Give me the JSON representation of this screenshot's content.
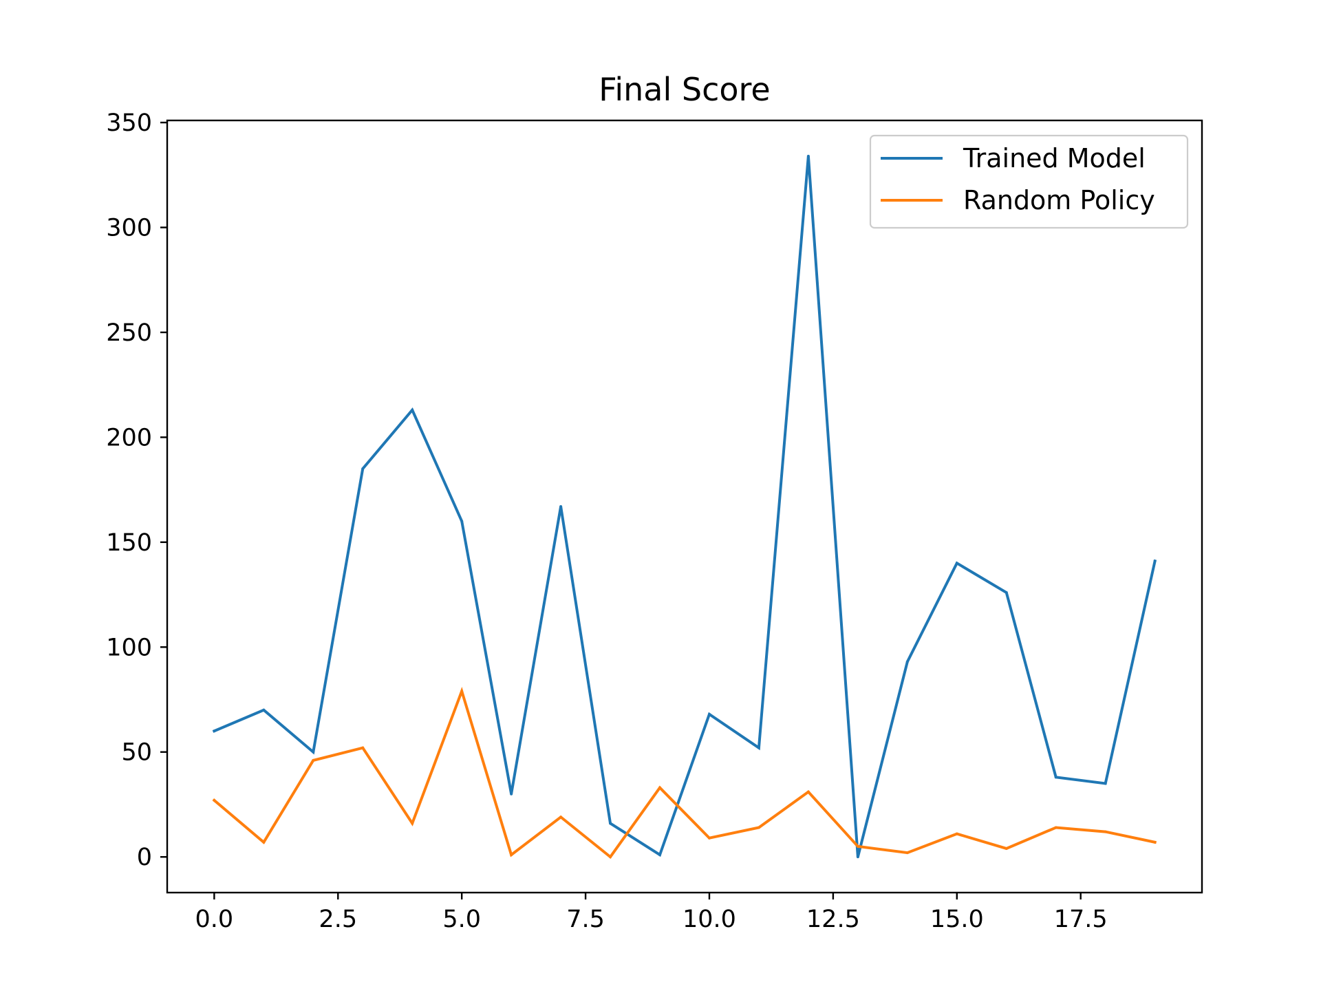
{
  "chart_data": {
    "type": "line",
    "title": "Final Score",
    "xlabel": "",
    "ylabel": "",
    "xlim": [
      -0.95,
      19.95
    ],
    "ylim": [
      -17,
      351
    ],
    "xticks": [
      0.0,
      2.5,
      5.0,
      7.5,
      10.0,
      12.5,
      15.0,
      17.5
    ],
    "xtick_labels": [
      "0.0",
      "2.5",
      "5.0",
      "7.5",
      "10.0",
      "12.5",
      "15.0",
      "17.5"
    ],
    "yticks": [
      0,
      50,
      100,
      150,
      200,
      250,
      300,
      350
    ],
    "ytick_labels": [
      "0",
      "50",
      "100",
      "150",
      "200",
      "250",
      "300",
      "350"
    ],
    "grid": false,
    "legend_position": "top-right",
    "x": [
      0,
      1,
      2,
      3,
      4,
      5,
      6,
      7,
      8,
      9,
      10,
      11,
      12,
      13,
      14,
      15,
      16,
      17,
      18,
      19
    ],
    "series": [
      {
        "name": "Trained Model",
        "color": "#1f77b4",
        "values": [
          60,
          70,
          50,
          185,
          213,
          160,
          30,
          167,
          16,
          1,
          68,
          52,
          334,
          0,
          93,
          140,
          126,
          38,
          35,
          141
        ]
      },
      {
        "name": "Random Policy",
        "color": "#ff7f0e",
        "values": [
          27,
          7,
          46,
          52,
          16,
          79,
          1,
          19,
          0,
          33,
          9,
          14,
          31,
          5,
          2,
          11,
          4,
          14,
          12,
          7
        ]
      }
    ]
  }
}
